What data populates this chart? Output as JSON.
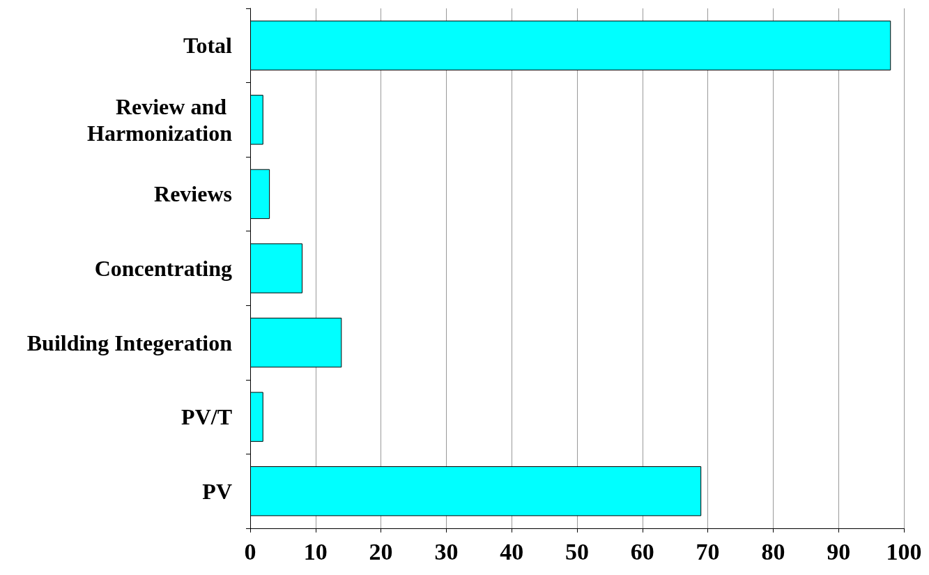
{
  "chart_data": {
    "type": "bar",
    "orientation": "horizontal",
    "categories": [
      "Total",
      "Review and Harmonization",
      "Reviews",
      "Concentrating",
      "Building Integeration",
      "PV/T",
      "PV"
    ],
    "values": [
      98,
      2,
      3,
      8,
      14,
      2,
      69
    ],
    "color": "#00ffff",
    "xlim": [
      0,
      100
    ],
    "xticks": [
      0,
      10,
      20,
      30,
      40,
      50,
      60,
      70,
      80,
      90,
      100
    ],
    "grid": "x"
  }
}
